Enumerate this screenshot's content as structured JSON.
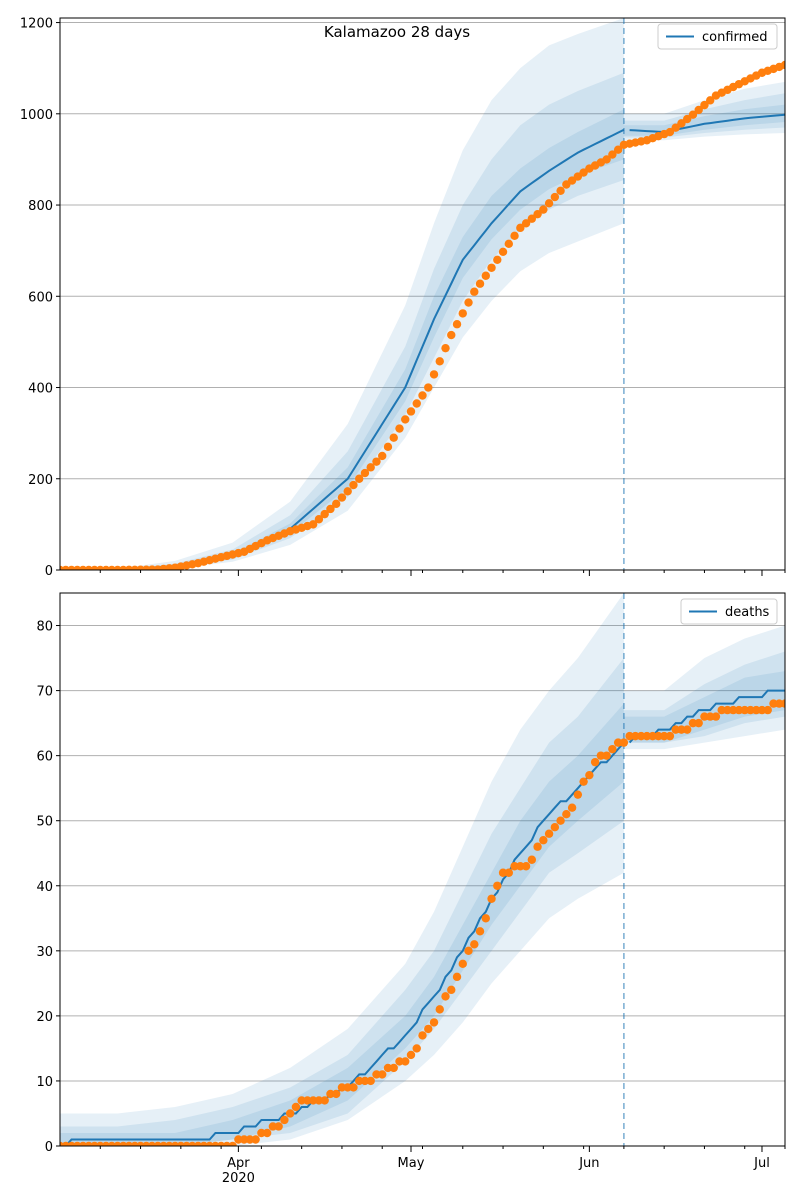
{
  "figure_title": "Kalamazoo 28 days",
  "colors": {
    "model": "#1f77b4",
    "observed": "#ff7f0e",
    "band": "#1f77b4",
    "grid": "#b0b0b0",
    "cutoff": "#1f77b4"
  },
  "x_axis": {
    "start": "2020-03-01",
    "end": "2020-07-05",
    "cutoff": "2020-06-07",
    "major_ticks": [
      {
        "date": "2020-04-01",
        "label": "Apr",
        "sublabel": "2020"
      },
      {
        "date": "2020-05-01",
        "label": "May",
        "sublabel": ""
      },
      {
        "date": "2020-06-01",
        "label": "Jun",
        "sublabel": ""
      },
      {
        "date": "2020-07-01",
        "label": "Jul",
        "sublabel": ""
      }
    ],
    "minor_tick_dates": [
      "2020-03-08",
      "2020-03-15",
      "2020-03-22",
      "2020-03-29",
      "2020-04-05",
      "2020-04-12",
      "2020-04-19",
      "2020-04-26",
      "2020-05-03",
      "2020-05-10",
      "2020-05-17",
      "2020-05-24",
      "2020-05-31",
      "2020-06-07",
      "2020-06-14",
      "2020-06-21",
      "2020-06-28",
      "2020-07-05"
    ]
  },
  "chart_data": [
    {
      "type": "line",
      "legend": "confirmed",
      "legend_position": "top-right",
      "grid": "horizontal",
      "ylim": [
        0,
        1210
      ],
      "y_ticks": [
        0,
        200,
        400,
        600,
        800,
        1000,
        1200
      ],
      "model_line": {
        "x": [
          "2020-03-01",
          "2020-03-11",
          "2020-03-21",
          "2020-03-31",
          "2020-04-10",
          "2020-04-20",
          "2020-04-30",
          "2020-05-05",
          "2020-05-10",
          "2020-05-15",
          "2020-05-20",
          "2020-05-25",
          "2020-05-30",
          "2020-06-07",
          "2020-06-14",
          "2020-06-21",
          "2020-06-28",
          "2020-07-05"
        ],
        "y": [
          0,
          1,
          8,
          30,
          90,
          200,
          400,
          550,
          680,
          760,
          830,
          875,
          915,
          965,
          960,
          978,
          990,
          998
        ]
      },
      "uncertainty_bands": [
        {
          "x": [
            "2020-03-01",
            "2020-03-11",
            "2020-03-21",
            "2020-03-31",
            "2020-04-10",
            "2020-04-20",
            "2020-04-30",
            "2020-05-05",
            "2020-05-10",
            "2020-05-15",
            "2020-05-20",
            "2020-05-25",
            "2020-05-30",
            "2020-06-07",
            "2020-06-14",
            "2020-06-21",
            "2020-06-28",
            "2020-07-05"
          ],
          "lower": [
            0,
            0,
            3,
            18,
            55,
            130,
            290,
            400,
            510,
            590,
            655,
            695,
            720,
            760,
            942,
            950,
            955,
            958
          ],
          "upper": [
            0,
            3,
            20,
            60,
            150,
            320,
            580,
            760,
            920,
            1030,
            1100,
            1150,
            1175,
            1210,
            1000,
            1030,
            1055,
            1070
          ]
        },
        {
          "x": [
            "2020-03-01",
            "2020-03-11",
            "2020-03-21",
            "2020-03-31",
            "2020-04-10",
            "2020-04-20",
            "2020-04-30",
            "2020-05-05",
            "2020-05-10",
            "2020-05-15",
            "2020-05-20",
            "2020-05-25",
            "2020-05-30",
            "2020-06-07",
            "2020-06-14",
            "2020-06-21",
            "2020-06-28",
            "2020-07-05"
          ],
          "lower": [
            0,
            0,
            5,
            23,
            70,
            160,
            340,
            465,
            590,
            680,
            745,
            790,
            820,
            855,
            948,
            958,
            965,
            970
          ],
          "upper": [
            0,
            2,
            14,
            45,
            120,
            260,
            490,
            660,
            800,
            900,
            975,
            1020,
            1050,
            1090,
            985,
            1010,
            1030,
            1045
          ]
        },
        {
          "x": [
            "2020-03-01",
            "2020-03-11",
            "2020-03-21",
            "2020-03-31",
            "2020-04-10",
            "2020-04-20",
            "2020-04-30",
            "2020-05-05",
            "2020-05-10",
            "2020-05-15",
            "2020-05-20",
            "2020-05-25",
            "2020-05-30",
            "2020-06-07",
            "2020-06-14",
            "2020-06-21",
            "2020-06-28",
            "2020-07-05"
          ],
          "lower": [
            0,
            1,
            6,
            26,
            80,
            180,
            370,
            510,
            640,
            725,
            790,
            835,
            865,
            900,
            952,
            965,
            975,
            982
          ],
          "upper": [
            0,
            1,
            11,
            36,
            102,
            225,
            440,
            600,
            730,
            820,
            880,
            925,
            960,
            1010,
            975,
            995,
            1010,
            1020
          ]
        }
      ],
      "observed_points": {
        "x": [
          "2020-03-01",
          "2020-03-11",
          "2020-03-18",
          "2020-03-21",
          "2020-03-25",
          "2020-03-29",
          "2020-04-02",
          "2020-04-06",
          "2020-04-10",
          "2020-04-14",
          "2020-04-18",
          "2020-04-22",
          "2020-04-26",
          "2020-04-30",
          "2020-05-04",
          "2020-05-08",
          "2020-05-12",
          "2020-05-16",
          "2020-05-20",
          "2020-05-24",
          "2020-05-28",
          "2020-06-01",
          "2020-06-04",
          "2020-06-07",
          "2020-06-11",
          "2020-06-15",
          "2020-06-19",
          "2020-06-23",
          "2020-06-27",
          "2020-07-01",
          "2020-07-05"
        ],
        "y": [
          0,
          0,
          1,
          5,
          15,
          28,
          40,
          65,
          85,
          100,
          145,
          200,
          250,
          330,
          400,
          515,
          610,
          680,
          750,
          790,
          845,
          880,
          900,
          932,
          942,
          960,
          998,
          1040,
          1065,
          1090,
          1107
        ]
      }
    },
    {
      "type": "line",
      "legend": "deaths",
      "legend_position": "top-right",
      "grid": "horizontal",
      "ylim": [
        0,
        85
      ],
      "y_ticks": [
        0,
        10,
        20,
        30,
        40,
        50,
        60,
        70,
        80
      ],
      "model_line": {
        "x": [
          "2020-03-01",
          "2020-03-04",
          "2020-03-24",
          "2020-03-31",
          "2020-04-10",
          "2020-04-20",
          "2020-04-30",
          "2020-05-05",
          "2020-05-10",
          "2020-05-15",
          "2020-05-20",
          "2020-05-25",
          "2020-05-30",
          "2020-06-07",
          "2020-06-14",
          "2020-06-21",
          "2020-06-28",
          "2020-07-05"
        ],
        "y": [
          0,
          1,
          1,
          2,
          5,
          9,
          17,
          23,
          30,
          38,
          45,
          51,
          55,
          62,
          64,
          67,
          69,
          70
        ]
      },
      "uncertainty_bands": [
        {
          "x": [
            "2020-03-01",
            "2020-03-11",
            "2020-03-21",
            "2020-03-31",
            "2020-04-10",
            "2020-04-20",
            "2020-04-30",
            "2020-05-05",
            "2020-05-10",
            "2020-05-15",
            "2020-05-20",
            "2020-05-25",
            "2020-05-30",
            "2020-06-07",
            "2020-06-14",
            "2020-06-21",
            "2020-06-28",
            "2020-07-05"
          ],
          "lower": [
            0,
            0,
            0,
            0,
            1,
            4,
            10,
            14,
            19,
            25,
            30,
            35,
            38,
            42,
            61,
            62,
            63,
            64
          ],
          "upper": [
            5,
            5,
            6,
            8,
            12,
            18,
            28,
            36,
            46,
            56,
            64,
            70,
            75,
            85,
            70,
            75,
            78,
            80
          ]
        },
        {
          "x": [
            "2020-03-01",
            "2020-03-11",
            "2020-03-21",
            "2020-03-31",
            "2020-04-10",
            "2020-04-20",
            "2020-04-30",
            "2020-05-05",
            "2020-05-10",
            "2020-05-15",
            "2020-05-20",
            "2020-05-25",
            "2020-05-30",
            "2020-06-07",
            "2020-06-14",
            "2020-06-21",
            "2020-06-28",
            "2020-07-05"
          ],
          "lower": [
            0,
            0,
            0,
            1,
            2,
            5,
            13,
            18,
            24,
            30,
            36,
            42,
            45,
            50,
            62,
            63,
            65,
            66
          ],
          "upper": [
            3,
            3,
            4,
            6,
            9,
            14,
            24,
            30,
            39,
            48,
            55,
            62,
            66,
            75,
            67,
            71,
            74,
            76
          ]
        },
        {
          "x": [
            "2020-03-01",
            "2020-03-11",
            "2020-03-21",
            "2020-03-31",
            "2020-04-10",
            "2020-04-20",
            "2020-04-30",
            "2020-05-05",
            "2020-05-10",
            "2020-05-15",
            "2020-05-20",
            "2020-05-25",
            "2020-05-30",
            "2020-06-07",
            "2020-06-14",
            "2020-06-21",
            "2020-06-28",
            "2020-07-05"
          ],
          "lower": [
            0,
            0,
            0,
            1,
            3,
            7,
            15,
            20,
            27,
            34,
            40,
            46,
            50,
            56,
            62,
            64,
            66,
            67
          ],
          "upper": [
            2,
            2,
            2,
            4,
            7,
            12,
            20,
            26,
            34,
            42,
            50,
            56,
            60,
            68,
            66,
            69,
            72,
            73
          ]
        }
      ],
      "observed_points": {
        "x": [
          "2020-03-01",
          "2020-03-15",
          "2020-03-28",
          "2020-04-04",
          "2020-04-08",
          "2020-04-12",
          "2020-04-16",
          "2020-04-20",
          "2020-04-24",
          "2020-04-28",
          "2020-05-01",
          "2020-05-05",
          "2020-05-09",
          "2020-05-13",
          "2020-05-17",
          "2020-05-21",
          "2020-05-25",
          "2020-05-29",
          "2020-06-02",
          "2020-06-05",
          "2020-06-08",
          "2020-06-14",
          "2020-06-18",
          "2020-06-22",
          "2020-06-26",
          "2020-06-30",
          "2020-07-05"
        ],
        "y": [
          0,
          0,
          0,
          1,
          3,
          7,
          7,
          9,
          10,
          12,
          14,
          19,
          26,
          33,
          42,
          43,
          48,
          52,
          59,
          61,
          63,
          63,
          64,
          66,
          67,
          67,
          68
        ]
      }
    }
  ]
}
